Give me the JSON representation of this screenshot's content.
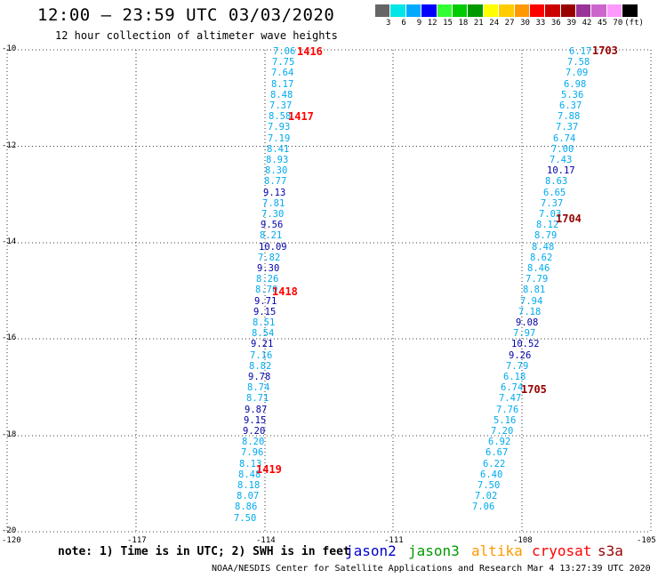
{
  "header": {
    "title": "12:00 – 23:59 UTC 03/03/2020",
    "subtitle": "12 hour collection of altimeter wave heights"
  },
  "colorbar": {
    "colors": [
      "#666666",
      "#00e5e5",
      "#00aaff",
      "#0000ff",
      "#33ff33",
      "#00cc00",
      "#009900",
      "#ffff00",
      "#ffcc00",
      "#ff9900",
      "#ff0000",
      "#cc0000",
      "#990000",
      "#993399",
      "#cc66cc",
      "#ff99ff",
      "#000000"
    ],
    "labels": [
      "3",
      "6",
      "9",
      "12",
      "15",
      "18",
      "21",
      "24",
      "27",
      "30",
      "33",
      "36",
      "39",
      "42",
      "45",
      "70"
    ],
    "unit": "(ft)"
  },
  "axes": {
    "lat_labels": [
      "-10",
      "-12",
      "-14",
      "-16",
      "-18",
      "-20"
    ],
    "lon_labels": [
      "-120",
      "-117",
      "-114",
      "-111",
      "-108",
      "-105"
    ]
  },
  "tracks": [
    {
      "name": "west",
      "values": [
        "7.06",
        "7.75",
        "7.64",
        "8.17",
        "8.48",
        "7.37",
        "8.58",
        "7.93",
        "7.19",
        "8.41",
        "8.93",
        "8.30",
        "8.77",
        "9.13",
        "7.81",
        "7.30",
        "9.56",
        "8.21",
        "10.09",
        "7.82",
        "9.30",
        "8.26",
        "8.70",
        "9.71",
        "9.15",
        "8.51",
        "8.54",
        "9.21",
        "7.16",
        "8.82",
        "9.78",
        "8.74",
        "8.71",
        "9.87",
        "9.15",
        "9.20",
        "8.20",
        "7.96",
        "8.13",
        "8.48",
        "8.18",
        "8.07",
        "8.86",
        "7.50"
      ],
      "colors": [
        "c",
        "c",
        "c",
        "c",
        "c",
        "c",
        "c",
        "c",
        "c",
        "c",
        "c",
        "c",
        "c",
        "b",
        "c",
        "c",
        "b",
        "c",
        "b",
        "c",
        "b",
        "c",
        "c",
        "b",
        "b",
        "c",
        "c",
        "b",
        "c",
        "c",
        "b",
        "c",
        "c",
        "b",
        "b",
        "b",
        "c",
        "c",
        "c",
        "c",
        "c",
        "c",
        "c",
        "c"
      ]
    },
    {
      "name": "east",
      "values": [
        "6.17",
        "7.58",
        "7.09",
        "6.98",
        "5.36",
        "6.37",
        "7.88",
        "7.37",
        "6.74",
        "7.00",
        "7.43",
        "10.17",
        "8.63",
        "6.65",
        "7.37",
        "7.03",
        "8.12",
        "8.79",
        "8.48",
        "8.62",
        "8.46",
        "7.79",
        "8.81",
        "7.94",
        "7.18",
        "9.08",
        "7.97",
        "10.52",
        "9.26",
        "7.79",
        "6.18",
        "6.74",
        "7.47",
        "7.76",
        "5.16",
        "7.20",
        "6.92",
        "6.67",
        "6.22",
        "6.40",
        "7.50",
        "7.02",
        "7.06"
      ],
      "colors": [
        "c",
        "c",
        "c",
        "c",
        "c",
        "c",
        "c",
        "c",
        "c",
        "c",
        "c",
        "b",
        "c",
        "c",
        "c",
        "c",
        "c",
        "c",
        "c",
        "c",
        "c",
        "c",
        "c",
        "c",
        "c",
        "b",
        "c",
        "b",
        "b",
        "c",
        "c",
        "c",
        "c",
        "c",
        "c",
        "c",
        "c",
        "c",
        "c",
        "c",
        "c",
        "c",
        "c"
      ]
    }
  ],
  "pass_labels": [
    {
      "text": "1416",
      "color": "#ff0000"
    },
    {
      "text": "1417",
      "color": "#ff0000"
    },
    {
      "text": "1418",
      "color": "#ff0000"
    },
    {
      "text": "1419",
      "color": "#ff0000"
    },
    {
      "text": "1703",
      "color": "#990000"
    },
    {
      "text": "1704",
      "color": "#990000"
    },
    {
      "text": "1705",
      "color": "#990000"
    }
  ],
  "footer": {
    "note": "note: 1) Time is in UTC; 2) SWH is in feet",
    "legend": [
      {
        "label": "jason2",
        "color": "#0000cc"
      },
      {
        "label": "jason3",
        "color": "#009900"
      },
      {
        "label": "altika",
        "color": "#ff9900"
      },
      {
        "label": "cryosat",
        "color": "#ff0000"
      },
      {
        "label": "s3a",
        "color": "#990000"
      }
    ],
    "credit": "NOAA/NESDIS Center for Satellite Applications and Research   Mar  4 13:27:39 UTC 2020"
  },
  "styles": {
    "cyan": "#00aaee",
    "blue": "#0000aa"
  }
}
